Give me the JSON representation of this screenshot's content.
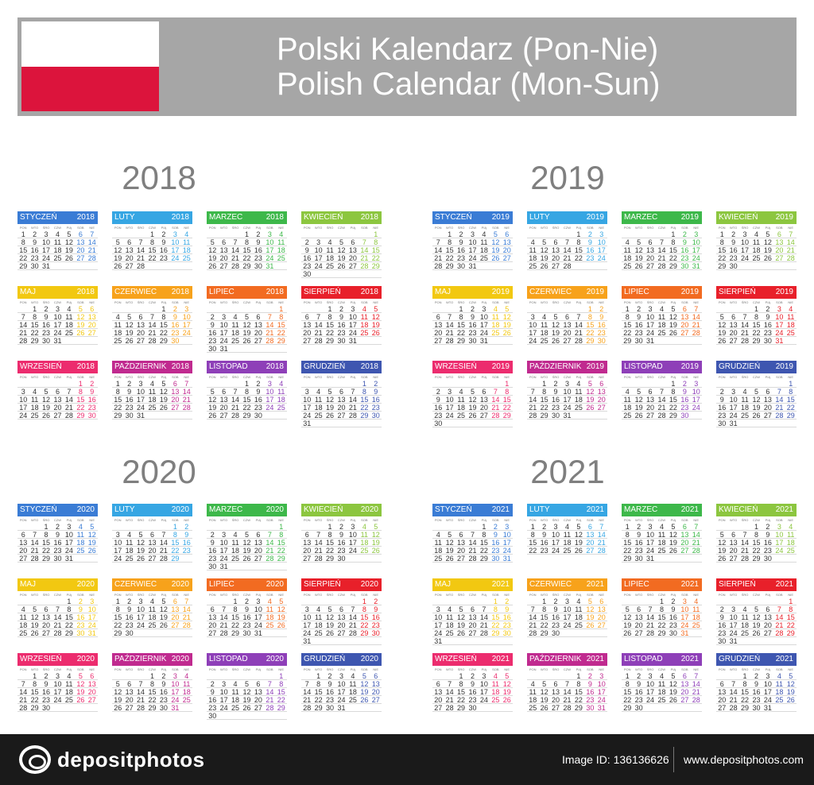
{
  "header": {
    "title_line1": "Polski Kalendarz (Pon-Nie)",
    "title_line2": "Polish Calendar (Mon-Sun)"
  },
  "weekday_labels": [
    "PON",
    "WTO",
    "ŚRO",
    "CZW",
    "PIĄ",
    "SOB",
    "NIE"
  ],
  "month_names": [
    "STYCZEŃ",
    "LUTY",
    "MARZEC",
    "KWIECIEŃ",
    "MAJ",
    "CZERWIEC",
    "LIPIEC",
    "SIERPIEŃ",
    "WRZESIEŃ",
    "PAŹDZIERNIK",
    "LISTOPAD",
    "GRUDZIEŃ"
  ],
  "month_colors": [
    "#3a7cd5",
    "#36a6e3",
    "#3db84a",
    "#8cc63f",
    "#f2c811",
    "#f7a21b",
    "#f26b21",
    "#e8202a",
    "#ec2c6e",
    "#c02a8f",
    "#8e3fb8",
    "#3e56b0"
  ],
  "years": [
    {
      "label": "2018",
      "first_weekday": [
        0,
        3,
        3,
        6,
        1,
        4,
        6,
        2,
        5,
        0,
        3,
        5
      ],
      "days": [
        31,
        28,
        31,
        30,
        31,
        30,
        31,
        31,
        30,
        31,
        30,
        31
      ]
    },
    {
      "label": "2019",
      "first_weekday": [
        1,
        4,
        4,
        0,
        2,
        5,
        0,
        3,
        6,
        1,
        4,
        6
      ],
      "days": [
        31,
        28,
        31,
        30,
        31,
        30,
        31,
        31,
        30,
        31,
        30,
        31
      ]
    },
    {
      "label": "2020",
      "first_weekday": [
        2,
        5,
        6,
        2,
        4,
        0,
        2,
        5,
        1,
        3,
        6,
        1
      ],
      "days": [
        31,
        29,
        31,
        30,
        31,
        30,
        31,
        31,
        30,
        31,
        30,
        31
      ]
    },
    {
      "label": "2021",
      "first_weekday": [
        4,
        0,
        0,
        3,
        5,
        1,
        3,
        6,
        2,
        4,
        0,
        2
      ],
      "days": [
        31,
        28,
        31,
        30,
        31,
        30,
        31,
        31,
        30,
        31,
        30,
        31
      ]
    }
  ],
  "footer": {
    "brand": "depositphotos",
    "image_id": "Image ID: 136136626",
    "site": "www.depositphotos.com"
  }
}
